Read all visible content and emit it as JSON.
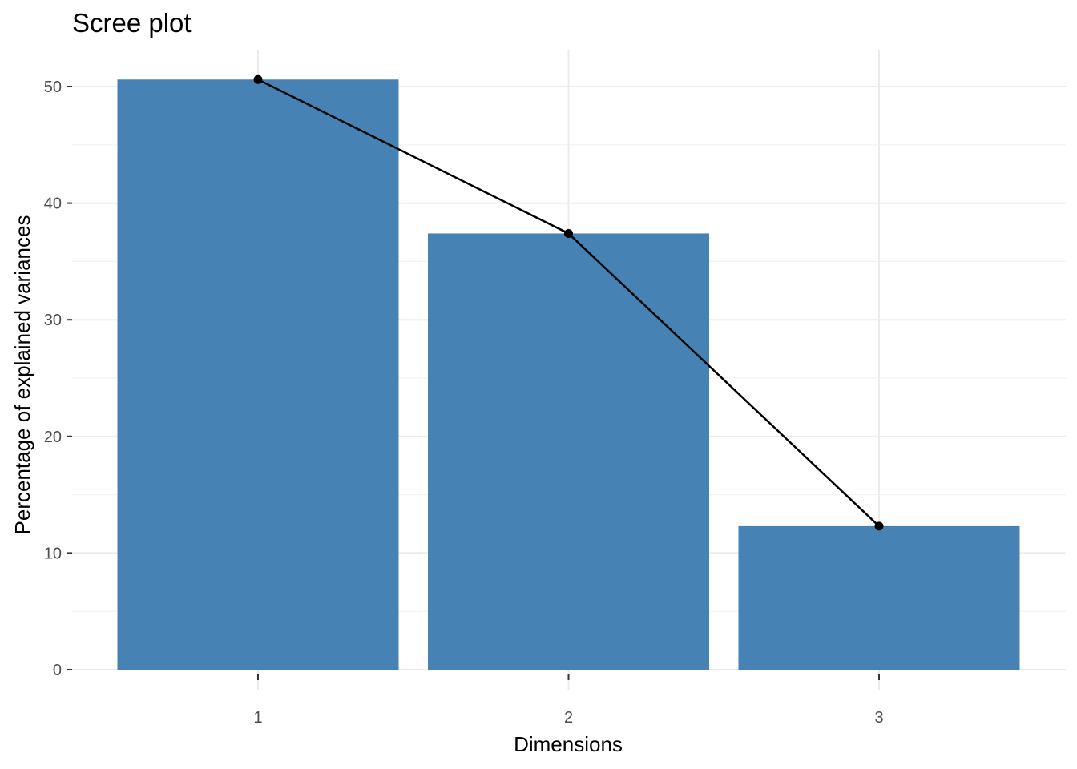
{
  "chart_data": {
    "type": "bar",
    "title": "Scree plot",
    "xlabel": "Dimensions",
    "ylabel": "Percentage of explained variances",
    "categories": [
      "1",
      "2",
      "3"
    ],
    "values": [
      50.6,
      37.4,
      12.3
    ],
    "line_overlay": true,
    "ylim": [
      0,
      53
    ],
    "yticks": [
      0,
      10,
      20,
      30,
      40,
      50
    ],
    "ytick_labels": [
      "0",
      "10",
      "20",
      "30",
      "40",
      "50"
    ],
    "grid": true,
    "bar_color": "#4682B4",
    "line_color": "#000000"
  }
}
